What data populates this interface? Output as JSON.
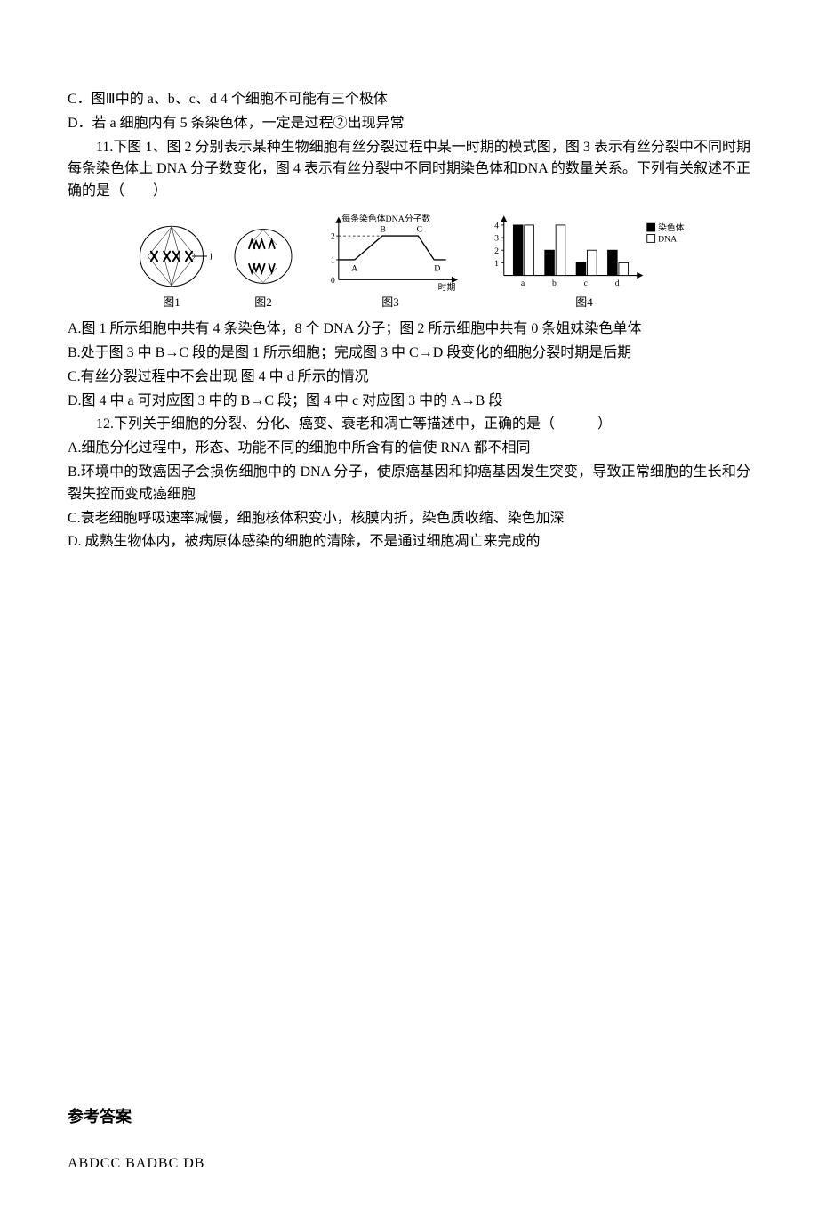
{
  "q10": {
    "optC": "C．图Ⅲ中的 a、b、c、d 4 个细胞不可能有三个极体",
    "optD": "D．若 a 细胞内有 5 条染色体，一定是过程②出现异常"
  },
  "q11": {
    "stem": "11.下图 1、图 2 分别表示某种生物细胞有丝分裂过程中某一时期的模式图，图 3 表示有丝分裂中不同时期每条染色体上 DNA 分子数变化，图 4 表示有丝分裂中不同时期染色体和DNA 的数量关系。下列有关叙述不正确的是（　　）",
    "fig3": {
      "ylabel": "每条染色体DNA分子数",
      "xlabel": "时期",
      "letters": {
        "A": "A",
        "B": "B",
        "C": "C",
        "D": "D"
      },
      "yticks": [
        "0",
        "1",
        "2"
      ],
      "yvalues": [
        1,
        2,
        2,
        1
      ],
      "line_color": "#000000",
      "axis_color": "#000000",
      "font_size": 11
    },
    "fig4": {
      "legend1": "染色体",
      "legend2": "DNA",
      "yticks": [
        "1",
        "2",
        "3",
        "4"
      ],
      "groups": [
        "a",
        "b",
        "c",
        "d"
      ],
      "values_chrom": [
        4,
        2,
        1,
        2
      ],
      "values_dna": [
        4,
        4,
        2,
        1
      ],
      "color_chrom": "#000000",
      "color_dna": "#ffffff",
      "border_color": "#000000",
      "ylim": [
        0,
        4
      ]
    },
    "captions": {
      "c1": "图1",
      "c2": "图2",
      "c3": "图3",
      "c4": "图4"
    },
    "optA": "A.图 1 所示细胞中共有 4 条染色体，8 个 DNA 分子；图 2 所示细胞中共有 0 条姐妹染色单体",
    "optB": "B.处于图 3 中 B→C 段的是图 1 所示细胞；完成图 3 中 C→D 段变化的细胞分裂时期是后期",
    "optC": "C.有丝分裂过程中不会出现 图 4 中 d 所示的情况",
    "optD": "D.图 4 中 a 可对应图 3 中的 B→C 段；图 4 中 c 对应图 3 中的 A→B 段"
  },
  "q12": {
    "stem": "12.下列关于细胞的分裂、分化、癌变、衰老和凋亡等描述中，正确的是（　　　）",
    "optA": "A.细胞分化过程中，形态、功能不同的细胞中所含有的信使 RNA 都不相同",
    "optB": "B.环境中的致癌因子会损伤细胞中的 DNA 分子，使原癌基因和抑癌基因发生突变，导致正常细胞的生长和分裂失控而变成癌细胞",
    "optC": "C.衰老细胞呼吸速率减慢，细胞核体积变小，核膜内折，染色质收缩、染色加深",
    "optD": "D. 成熟生物体内，被病原体感染的细胞的清除，不是通过细胞凋亡来完成的"
  },
  "answers": {
    "title": "参考答案",
    "line": "ABDCC BADBC  DB"
  }
}
